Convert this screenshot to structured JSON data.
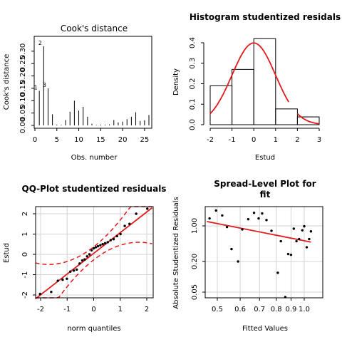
{
  "chart_data": [
    {
      "type": "bar",
      "subtype": "spike",
      "title": "Cook's distance",
      "xlabel": "Obs. number",
      "ylabel": "Cook's distance",
      "xlim": [
        0,
        26
      ],
      "ylim": [
        0,
        0.36
      ],
      "x_ticks": [
        "0",
        "5",
        "10",
        "15",
        "20",
        "25"
      ],
      "y_ticks": [
        "0.00",
        "0.05",
        "0.10",
        "0.15",
        "0.20",
        "0.25",
        "0.30"
      ],
      "x": [
        1,
        2,
        3,
        4,
        5,
        6,
        7,
        8,
        9,
        10,
        11,
        12,
        13,
        14,
        15,
        16,
        17,
        18,
        19,
        20,
        21,
        22,
        23,
        24,
        25,
        26
      ],
      "values": [
        0.14,
        0.32,
        0.15,
        0.045,
        0.003,
        0.002,
        0.022,
        0.055,
        0.1,
        0.06,
        0.075,
        0.035,
        0.007,
        0.002,
        0.003,
        0.003,
        0.004,
        0.022,
        0.012,
        0.015,
        0.025,
        0.035,
        0.053,
        0.018,
        0.021,
        0.042
      ],
      "point_labels": [
        {
          "obs": 1,
          "label": "1"
        },
        {
          "obs": 2,
          "label": "2"
        },
        {
          "obs": 3,
          "label": "3"
        }
      ]
    },
    {
      "type": "bar",
      "subtype": "histogram",
      "title": "Histogram studentized residals",
      "xlabel": "Estud",
      "ylabel": "Density",
      "xlim": [
        -2,
        3
      ],
      "ylim": [
        0,
        0.45
      ],
      "x_ticks": [
        "-2",
        "-1",
        "0",
        "1",
        "2",
        "3"
      ],
      "y_ticks": [
        "0.0",
        "0.1",
        "0.2",
        "0.3",
        "0.4"
      ],
      "bins": [
        [
          -2,
          -1
        ],
        [
          -1,
          0
        ],
        [
          0,
          1
        ],
        [
          1,
          2
        ],
        [
          2,
          3
        ]
      ],
      "values": [
        0.19,
        0.27,
        0.42,
        0.077,
        0.038
      ],
      "overlay": {
        "type": "line",
        "name": "normal density",
        "mean": 0,
        "sd": 1,
        "color": "#e31a1c"
      }
    },
    {
      "type": "scatter",
      "title": "QQ-Plot studentized residuals",
      "xlabel": "norm quantiles",
      "ylabel": "Estud",
      "xlim": [
        -2.2,
        2.2
      ],
      "ylim": [
        -2.15,
        2.35
      ],
      "x_ticks": [
        "-2",
        "-1",
        "0",
        "1",
        "2"
      ],
      "y_ticks": [
        "-2",
        "-1",
        "0",
        "1",
        "2"
      ],
      "grid": true,
      "x": [
        -2.02,
        -1.6,
        -1.35,
        -1.17,
        -1.01,
        -0.88,
        -0.75,
        -0.64,
        -0.53,
        -0.43,
        -0.34,
        -0.25,
        -0.16,
        -0.08,
        0.0,
        0.08,
        0.16,
        0.25,
        0.34,
        0.43,
        0.53,
        0.64,
        0.75,
        0.88,
        1.01,
        1.17,
        1.35,
        1.6,
        2.02
      ],
      "values": [
        -1.95,
        -1.85,
        -1.3,
        -1.25,
        -1.2,
        -0.85,
        -0.8,
        -0.75,
        -0.45,
        -0.3,
        -0.25,
        -0.1,
        0.0,
        0.2,
        0.3,
        0.35,
        0.4,
        0.45,
        0.5,
        0.55,
        0.6,
        0.7,
        0.75,
        0.9,
        1.0,
        1.4,
        1.5,
        2.0,
        2.25
      ],
      "reference_line": {
        "intercept": 0.05,
        "slope": 1.02,
        "color": "#e31a1c"
      },
      "envelope": {
        "color": "#e31a1c",
        "style": "dashed"
      }
    },
    {
      "type": "scatter",
      "title": "Spread-Level Plot for fit",
      "title_lines": [
        "Spread-Level Plot for",
        "fit"
      ],
      "xlabel": "Fitted Values",
      "ylabel": "Absolute Studentized Residuals",
      "scale": "log-log",
      "xlim": [
        0.45,
        1.06
      ],
      "ylim": [
        0.035,
        2.2
      ],
      "x_ticks": [
        0.5,
        0.6,
        0.7,
        0.8,
        0.9,
        1.0
      ],
      "x_tick_labels": [
        "0.5",
        "0.6",
        "0.7",
        "0.8",
        "0.9",
        "1.0"
      ],
      "y_ticks": [
        0.05,
        0.2,
        1.0
      ],
      "y_tick_labels": [
        "0.05",
        "0.20",
        "1.00"
      ],
      "grid": true,
      "x": [
        0.47,
        0.495,
        0.52,
        0.54,
        0.56,
        0.59,
        0.61,
        0.64,
        0.67,
        0.695,
        0.715,
        0.74,
        0.77,
        0.81,
        0.83,
        0.86,
        0.88,
        0.9,
        0.92,
        0.94,
        0.96,
        0.985,
        1.0,
        1.02,
        1.04,
        1.055
      ],
      "values": [
        1.4,
        2.0,
        1.6,
        0.95,
        0.35,
        0.2,
        0.85,
        1.35,
        1.8,
        1.4,
        1.75,
        1.3,
        0.8,
        0.12,
        0.5,
        0.04,
        0.28,
        0.27,
        0.88,
        0.5,
        0.55,
        0.82,
        0.98,
        0.38,
        0.55,
        0.78
      ],
      "trend_line": {
        "color": "#e31a1c",
        "x": [
          0.46,
          1.055
        ],
        "y": [
          1.22,
          0.48
        ]
      }
    }
  ]
}
